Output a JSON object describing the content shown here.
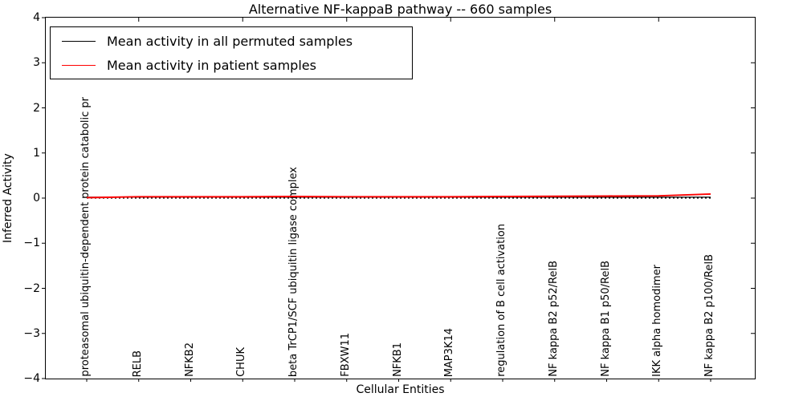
{
  "figure": {
    "title": "Alternative NF-kappaB pathway -- 660 samples",
    "background_color": "#ffffff"
  },
  "chart_data": {
    "type": "line",
    "title": "Alternative NF-kappaB pathway -- 660 samples",
    "xlabel": "Cellular Entities",
    "ylabel": "Inferred Activity",
    "ylim": [
      -4,
      4
    ],
    "yticks": [
      -4,
      -3,
      -2,
      -1,
      0,
      1,
      2,
      3,
      4
    ],
    "grid": false,
    "categories": [
      "proteasomal ubiquitin-dependent protein catabolic pr",
      "RELB",
      "NFKB2",
      "CHUK",
      "beta TrCP1/SCF ubiquitin ligase complex",
      "FBXW11",
      "NFKB1",
      "MAP3K14",
      "regulation of B cell activation",
      "NF kappa B2 p52/RelB",
      "NF kappa B1 p50/RelB",
      "IKK alpha homodimer",
      "NF kappa B2 p100/RelB"
    ],
    "series": [
      {
        "name": "Mean activity in all permuted samples",
        "color": "#000000",
        "line_style": "solid",
        "line_width": 1.3,
        "values": [
          0.02,
          0.02,
          0.02,
          0.02,
          0.02,
          0.02,
          0.02,
          0.02,
          0.02,
          0.02,
          0.02,
          0.02,
          0.02
        ]
      },
      {
        "name": "Mean activity in patient samples",
        "color": "#ff0000",
        "line_style": "solid",
        "line_width": 2,
        "values": [
          0.01,
          0.03,
          0.03,
          0.03,
          0.035,
          0.03,
          0.03,
          0.03,
          0.035,
          0.04,
          0.045,
          0.05,
          0.09
        ]
      }
    ],
    "reference_line": {
      "y": 0,
      "line_style": "dotted",
      "color": "#000000"
    },
    "legend": {
      "position": "upper left"
    }
  }
}
